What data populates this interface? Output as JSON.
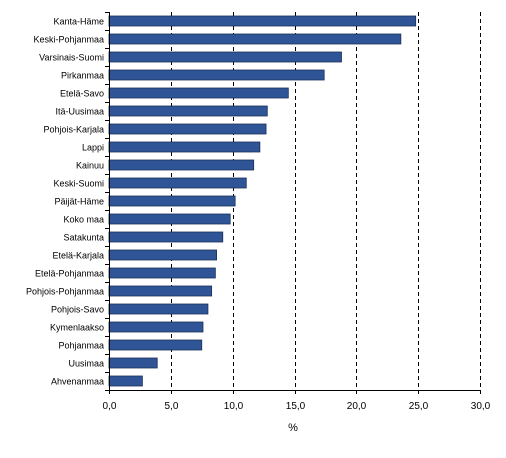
{
  "chart_data": {
    "type": "bar",
    "orientation": "horizontal",
    "title": "",
    "xlabel": "%",
    "ylabel": "",
    "xlim": [
      0,
      30
    ],
    "x_ticks": [
      0,
      5,
      10,
      15,
      20,
      25,
      30
    ],
    "x_tick_labels": [
      "0,0",
      "5,0",
      "10,0",
      "15,0",
      "20,0",
      "25,0",
      "30,0"
    ],
    "grid": "vertical dashed",
    "legend": "none",
    "bar_color": "#2f5597",
    "categories": [
      "Kanta-Häme",
      "Keski-Pohjanmaa",
      "Varsinais-Suomi",
      "Pirkanmaa",
      "Etelä-Savo",
      "Itä-Uusimaa",
      "Pohjois-Karjala",
      "Lappi",
      "Kainuu",
      "Keski-Suomi",
      "Päijät-Häme",
      "Koko maa",
      "Satakunta",
      "Etelä-Karjala",
      "Etelä-Pohjanmaa",
      "Pohjois-Pohjanmaa",
      "Pohjois-Savo",
      "Kymenlaakso",
      "Pohjanmaa",
      "Uusimaa",
      "Ahvenanmaa"
    ],
    "values": [
      24.8,
      23.6,
      18.8,
      17.4,
      14.5,
      12.8,
      12.7,
      12.2,
      11.7,
      11.1,
      10.2,
      9.8,
      9.2,
      8.7,
      8.6,
      8.3,
      8.0,
      7.6,
      7.5,
      3.9,
      2.7
    ]
  }
}
